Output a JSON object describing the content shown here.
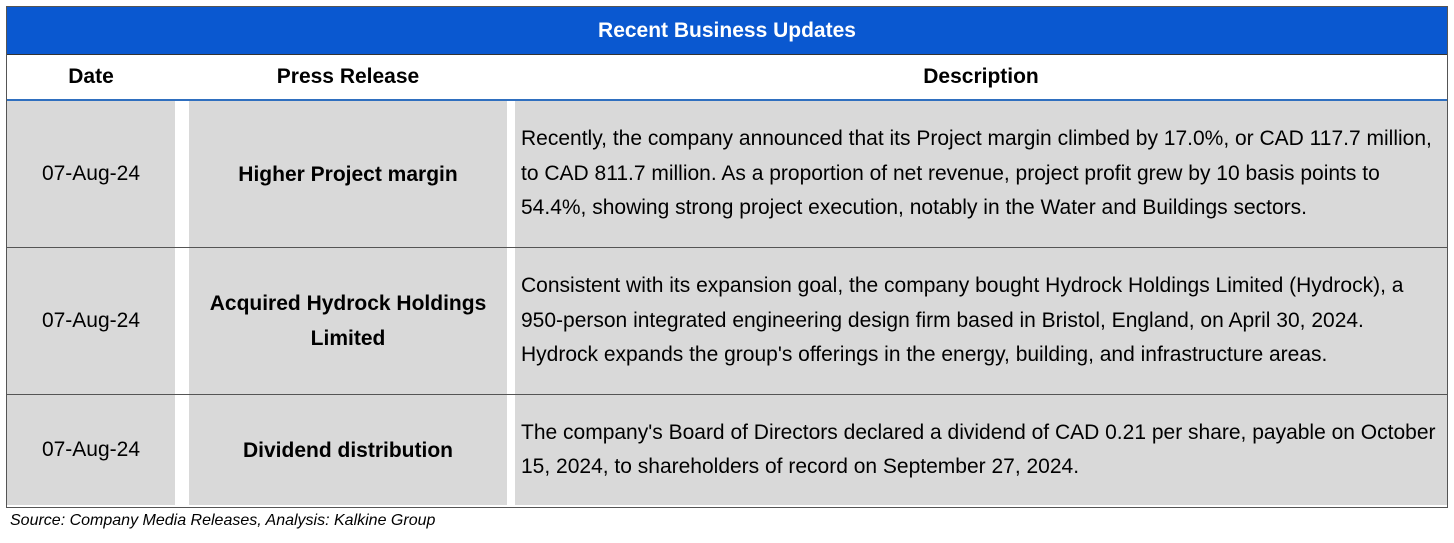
{
  "table": {
    "title": "Recent Business Updates",
    "headers": {
      "date": "Date",
      "press_release": "Press Release",
      "description": "Description"
    },
    "rows": [
      {
        "date": "07-Aug-24",
        "press_release": "Higher Project margin",
        "description": "Recently, the company announced that its Project margin climbed by 17.0%, or CAD 117.7 million, to CAD 811.7 million. As a proportion of net revenue, project profit grew by 10 basis points to 54.4%, showing strong project execution, notably in the Water and Buildings sectors."
      },
      {
        "date": "07-Aug-24",
        "press_release": "Acquired Hydrock Holdings Limited",
        "description": "Consistent with its expansion goal, the company bought Hydrock Holdings Limited (Hydrock), a 950-person integrated engineering design firm based in Bristol, England, on April 30, 2024. Hydrock expands the group's offerings in the energy, building, and infrastructure areas."
      },
      {
        "date": "07-Aug-24",
        "press_release": "Dividend distribution",
        "description": "The company's  Board of Directors declared a dividend of CAD 0.21 per share, payable on October 15, 2024, to shareholders of record on September 27, 2024."
      }
    ]
  },
  "source": "Source: Company Media Releases, Analysis: Kalkine Group"
}
